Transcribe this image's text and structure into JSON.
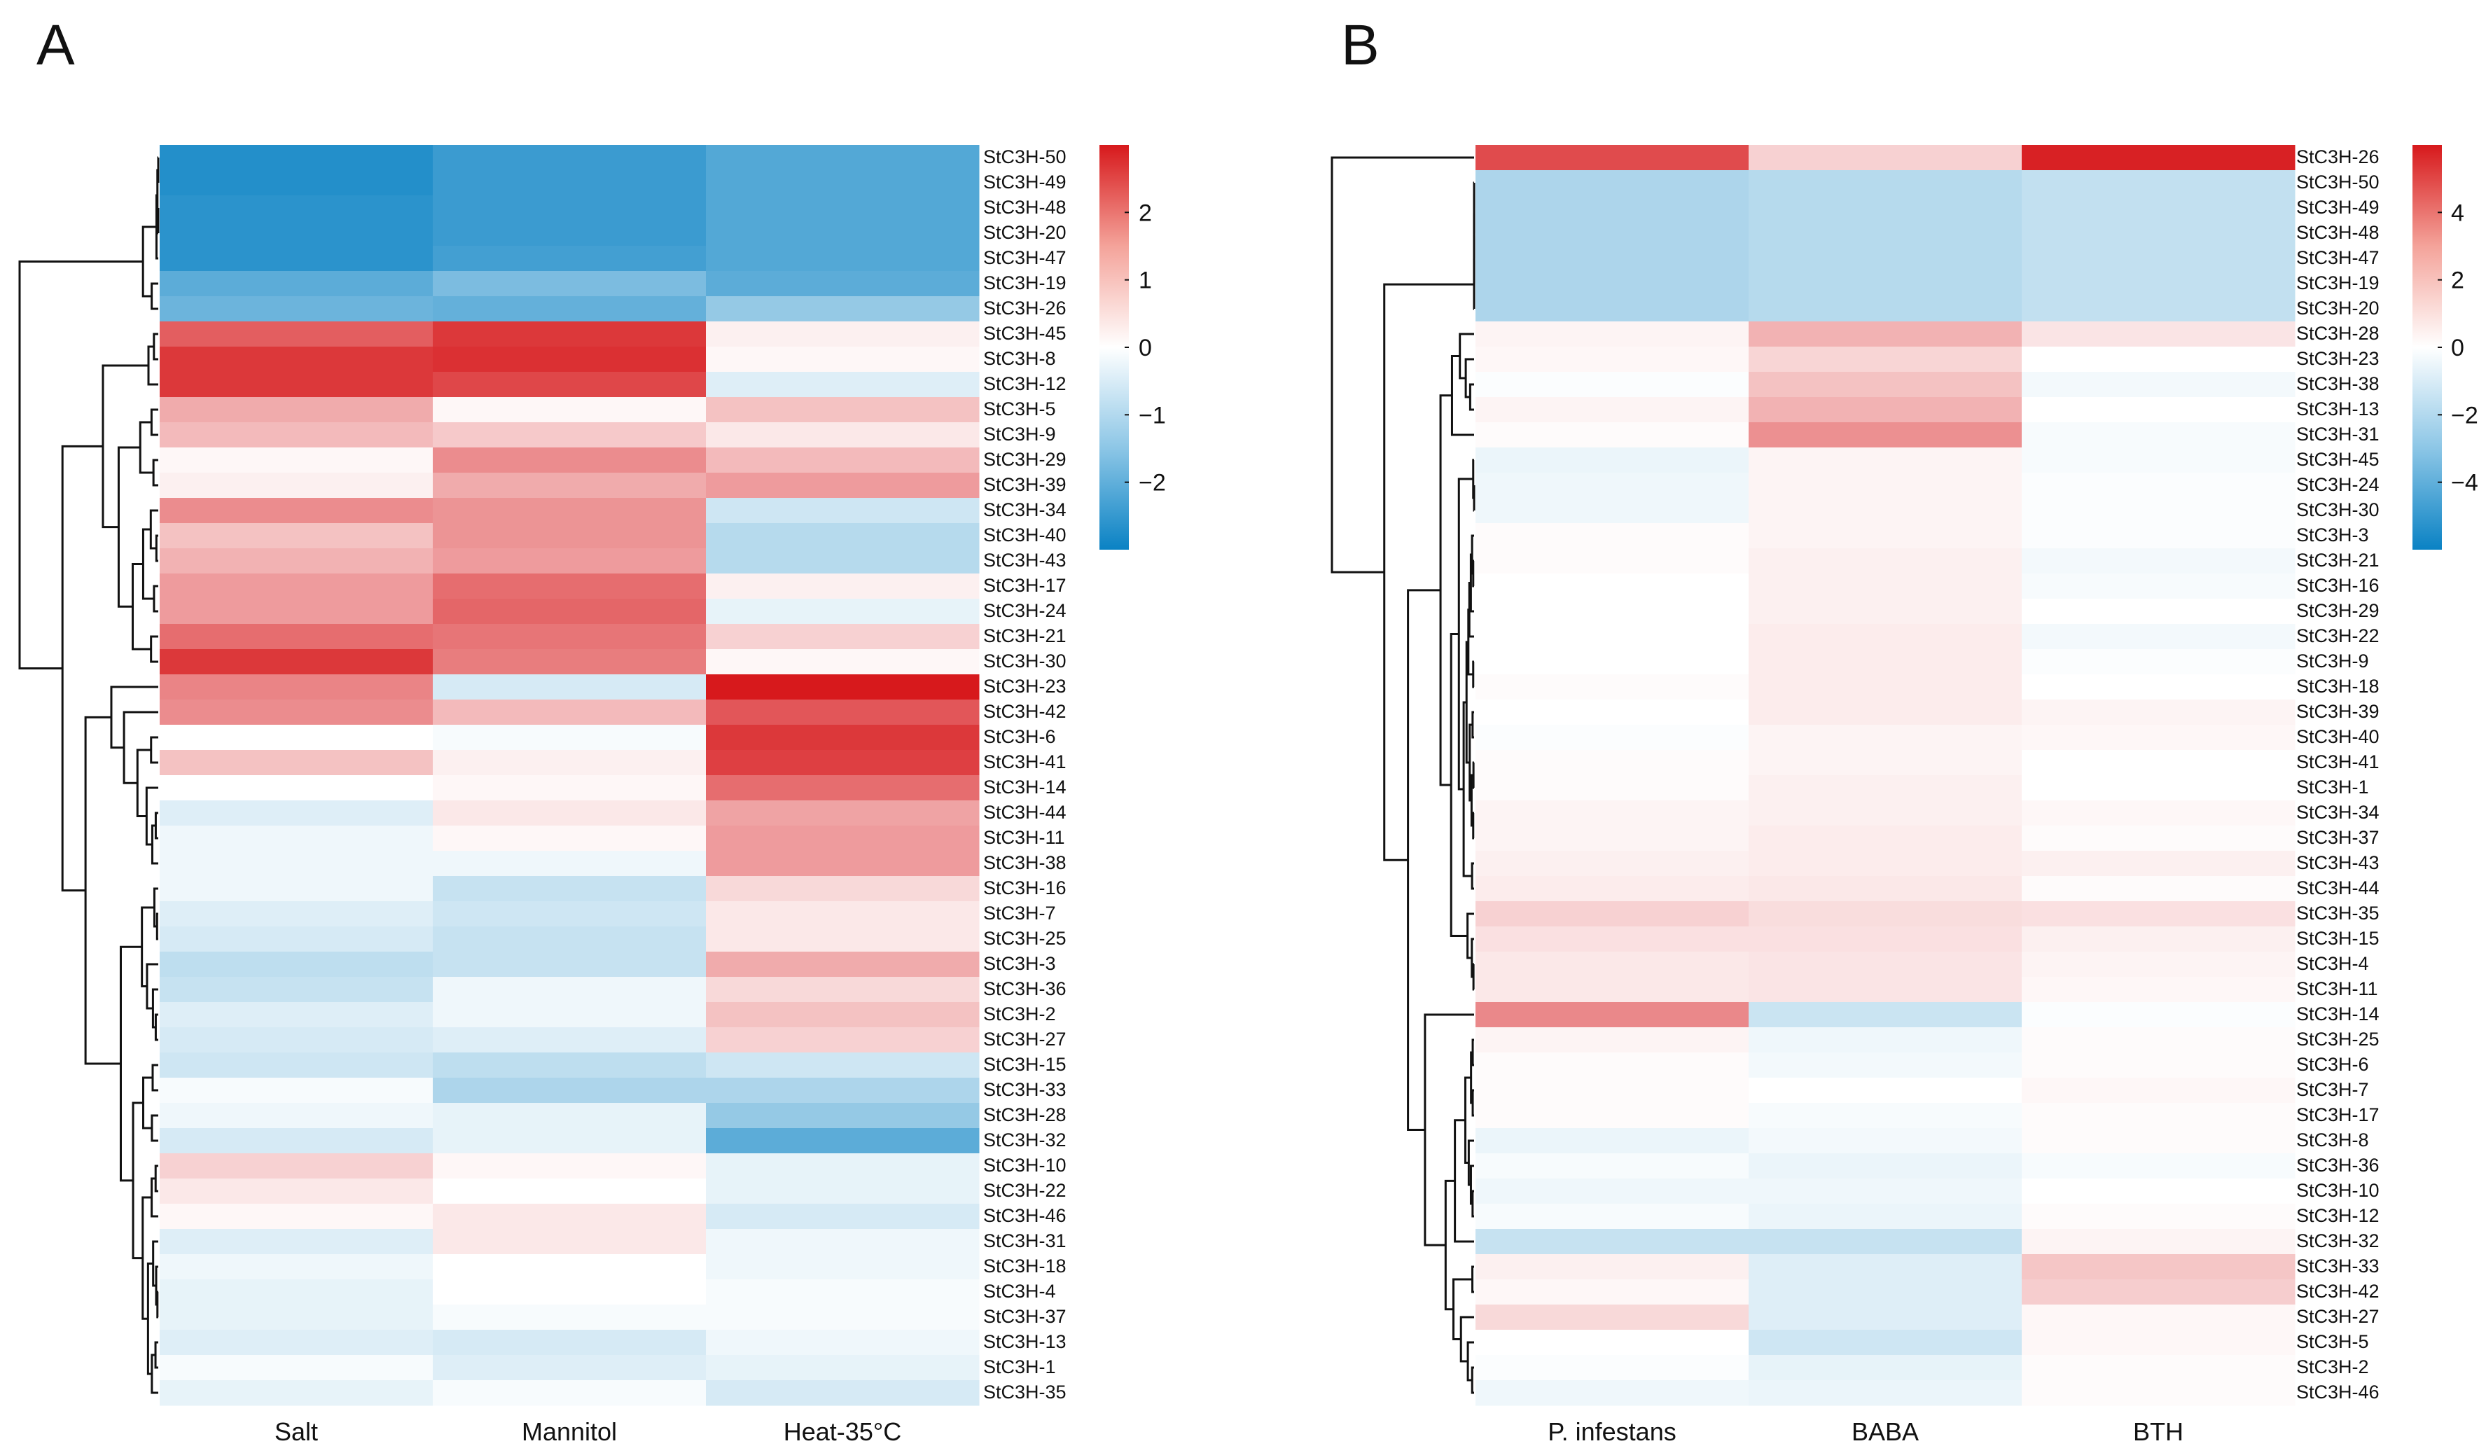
{
  "chart_data": [
    {
      "type": "heatmap",
      "panel": "A",
      "columns": [
        "Salt",
        "Mannitol",
        "Heat-35°C"
      ],
      "rows": [
        "StC3H-50",
        "StC3H-49",
        "StC3H-48",
        "StC3H-20",
        "StC3H-47",
        "StC3H-19",
        "StC3H-26",
        "StC3H-45",
        "StC3H-8",
        "StC3H-12",
        "StC3H-5",
        "StC3H-9",
        "StC3H-29",
        "StC3H-39",
        "StC3H-34",
        "StC3H-40",
        "StC3H-43",
        "StC3H-17",
        "StC3H-24",
        "StC3H-21",
        "StC3H-30",
        "StC3H-23",
        "StC3H-42",
        "StC3H-6",
        "StC3H-41",
        "StC3H-14",
        "StC3H-44",
        "StC3H-11",
        "StC3H-38",
        "StC3H-16",
        "StC3H-7",
        "StC3H-25",
        "StC3H-3",
        "StC3H-36",
        "StC3H-2",
        "StC3H-27",
        "StC3H-15",
        "StC3H-33",
        "StC3H-28",
        "StC3H-32",
        "StC3H-10",
        "StC3H-22",
        "StC3H-46",
        "StC3H-31",
        "StC3H-18",
        "StC3H-4",
        "StC3H-37",
        "StC3H-13",
        "StC3H-1",
        "StC3H-35"
      ],
      "values": [
        [
          -2.7,
          -2.4,
          -2.1
        ],
        [
          -2.7,
          -2.4,
          -2.1
        ],
        [
          -2.6,
          -2.4,
          -2.1
        ],
        [
          -2.6,
          -2.4,
          -2.1
        ],
        [
          -2.6,
          -2.3,
          -2.1
        ],
        [
          -2.0,
          -1.6,
          -2.0
        ],
        [
          -1.8,
          -1.9,
          -1.3
        ],
        [
          2.1,
          2.6,
          0.2
        ],
        [
          2.6,
          2.7,
          0.1
        ],
        [
          2.6,
          2.4,
          -0.4
        ],
        [
          1.1,
          0.1,
          0.8
        ],
        [
          0.9,
          0.7,
          0.3
        ],
        [
          0.1,
          1.5,
          0.9
        ],
        [
          0.2,
          1.1,
          1.3
        ],
        [
          1.5,
          1.4,
          -0.6
        ],
        [
          0.8,
          1.4,
          -0.9
        ],
        [
          1.0,
          1.3,
          -0.9
        ],
        [
          1.3,
          1.9,
          0.2
        ],
        [
          1.3,
          2.0,
          -0.3
        ],
        [
          1.9,
          1.8,
          0.6
        ],
        [
          2.6,
          1.7,
          0.1
        ],
        [
          1.6,
          -0.5,
          3.0
        ],
        [
          1.5,
          0.9,
          2.2
        ],
        [
          0.0,
          -0.1,
          2.6
        ],
        [
          0.8,
          0.2,
          2.5
        ],
        [
          0.0,
          0.1,
          1.9
        ],
        [
          -0.4,
          0.3,
          1.2
        ],
        [
          -0.2,
          0.1,
          1.3
        ],
        [
          -0.2,
          -0.2,
          1.3
        ],
        [
          -0.2,
          -0.7,
          0.5
        ],
        [
          -0.4,
          -0.6,
          0.3
        ],
        [
          -0.5,
          -0.7,
          0.3
        ],
        [
          -0.8,
          -0.7,
          1.1
        ],
        [
          -0.7,
          -0.2,
          0.5
        ],
        [
          -0.4,
          -0.2,
          0.8
        ],
        [
          -0.5,
          -0.4,
          0.6
        ],
        [
          -0.6,
          -0.8,
          -0.6
        ],
        [
          -0.1,
          -1.0,
          -1.0
        ],
        [
          -0.2,
          -0.3,
          -1.3
        ],
        [
          -0.5,
          -0.3,
          -2.0
        ],
        [
          0.6,
          0.1,
          -0.3
        ],
        [
          0.3,
          0.0,
          -0.3
        ],
        [
          0.1,
          0.3,
          -0.5
        ],
        [
          -0.4,
          0.3,
          -0.2
        ],
        [
          -0.2,
          0.0,
          -0.2
        ],
        [
          -0.3,
          0.0,
          -0.1
        ],
        [
          -0.3,
          -0.1,
          -0.1
        ],
        [
          -0.4,
          -0.5,
          -0.2
        ],
        [
          -0.1,
          -0.4,
          -0.3
        ],
        [
          -0.3,
          -0.1,
          -0.5
        ]
      ],
      "colorbar": {
        "range": [
          -3.0,
          3.0
        ],
        "ticks": [
          "2",
          "1",
          "0",
          "−1",
          "−2"
        ],
        "tick_values": [
          2,
          1,
          0,
          -1,
          -2
        ]
      },
      "colors": {
        "low": "#0a82c4",
        "mid": "#ffffff",
        "high": "#d7191c"
      }
    },
    {
      "type": "heatmap",
      "panel": "B",
      "columns": [
        "P. infestans",
        "BABA",
        "BTH"
      ],
      "rows": [
        "StC3H-26",
        "StC3H-50",
        "StC3H-49",
        "StC3H-48",
        "StC3H-47",
        "StC3H-19",
        "StC3H-20",
        "StC3H-28",
        "StC3H-23",
        "StC3H-38",
        "StC3H-13",
        "StC3H-31",
        "StC3H-45",
        "StC3H-24",
        "StC3H-30",
        "StC3H-3",
        "StC3H-21",
        "StC3H-16",
        "StC3H-29",
        "StC3H-22",
        "StC3H-9",
        "StC3H-18",
        "StC3H-39",
        "StC3H-40",
        "StC3H-41",
        "StC3H-1",
        "StC3H-34",
        "StC3H-37",
        "StC3H-43",
        "StC3H-44",
        "StC3H-35",
        "StC3H-15",
        "StC3H-4",
        "StC3H-11",
        "StC3H-14",
        "StC3H-25",
        "StC3H-6",
        "StC3H-7",
        "StC3H-17",
        "StC3H-8",
        "StC3H-36",
        "StC3H-10",
        "StC3H-12",
        "StC3H-32",
        "StC3H-33",
        "StC3H-42",
        "StC3H-27",
        "StC3H-5",
        "StC3H-2",
        "StC3H-46"
      ],
      "values": [
        [
          4.7,
          1.2,
          5.8
        ],
        [
          -2.0,
          -1.8,
          -1.5
        ],
        [
          -2.0,
          -1.8,
          -1.5
        ],
        [
          -2.0,
          -1.8,
          -1.5
        ],
        [
          -2.0,
          -1.8,
          -1.5
        ],
        [
          -2.0,
          -1.8,
          -1.5
        ],
        [
          -2.0,
          -1.8,
          -1.5
        ],
        [
          0.3,
          2.0,
          0.7
        ],
        [
          0.2,
          1.1,
          0.0
        ],
        [
          -0.1,
          1.6,
          -0.3
        ],
        [
          0.3,
          2.0,
          0.0
        ],
        [
          0.1,
          2.9,
          -0.2
        ],
        [
          -0.5,
          0.3,
          -0.2
        ],
        [
          -0.4,
          0.3,
          -0.1
        ],
        [
          -0.4,
          0.3,
          -0.1
        ],
        [
          0.1,
          0.3,
          -0.1
        ],
        [
          0.1,
          0.4,
          -0.3
        ],
        [
          0.0,
          0.4,
          -0.2
        ],
        [
          0.0,
          0.4,
          0.0
        ],
        [
          0.0,
          0.5,
          -0.3
        ],
        [
          0.0,
          0.5,
          -0.1
        ],
        [
          0.1,
          0.5,
          0.0
        ],
        [
          0.0,
          0.5,
          0.3
        ],
        [
          -0.1,
          0.3,
          0.2
        ],
        [
          0.1,
          0.3,
          0.0
        ],
        [
          0.1,
          0.4,
          0.0
        ],
        [
          0.3,
          0.4,
          0.2
        ],
        [
          0.3,
          0.5,
          0.1
        ],
        [
          0.4,
          0.5,
          0.4
        ],
        [
          0.5,
          0.6,
          0.1
        ],
        [
          1.2,
          0.9,
          0.8
        ],
        [
          0.8,
          0.8,
          0.4
        ],
        [
          0.6,
          0.7,
          0.3
        ],
        [
          0.6,
          0.7,
          0.2
        ],
        [
          3.1,
          -1.3,
          -0.1
        ],
        [
          0.3,
          -0.4,
          0.1
        ],
        [
          0.1,
          -0.3,
          0.1
        ],
        [
          0.1,
          0.0,
          0.2
        ],
        [
          0.1,
          -0.2,
          0.1
        ],
        [
          -0.5,
          -0.3,
          0.1
        ],
        [
          -0.2,
          -0.5,
          -0.2
        ],
        [
          -0.4,
          -0.4,
          0.0
        ],
        [
          -0.2,
          -0.5,
          0.1
        ],
        [
          -1.4,
          -1.4,
          0.3
        ],
        [
          0.4,
          -0.8,
          1.5
        ],
        [
          0.2,
          -0.8,
          1.3
        ],
        [
          1.0,
          -0.8,
          0.2
        ],
        [
          0.0,
          -1.2,
          0.2
        ],
        [
          -0.1,
          -0.6,
          0.1
        ],
        [
          -0.4,
          -0.5,
          0.1
        ]
      ],
      "colorbar": {
        "range": [
          -6.0,
          6.0
        ],
        "ticks": [
          "4",
          "2",
          "0",
          "−2",
          "−4"
        ],
        "tick_values": [
          4,
          2,
          0,
          -2,
          -4
        ]
      },
      "colors": {
        "low": "#0a82c4",
        "mid": "#ffffff",
        "high": "#d7191c"
      }
    }
  ]
}
